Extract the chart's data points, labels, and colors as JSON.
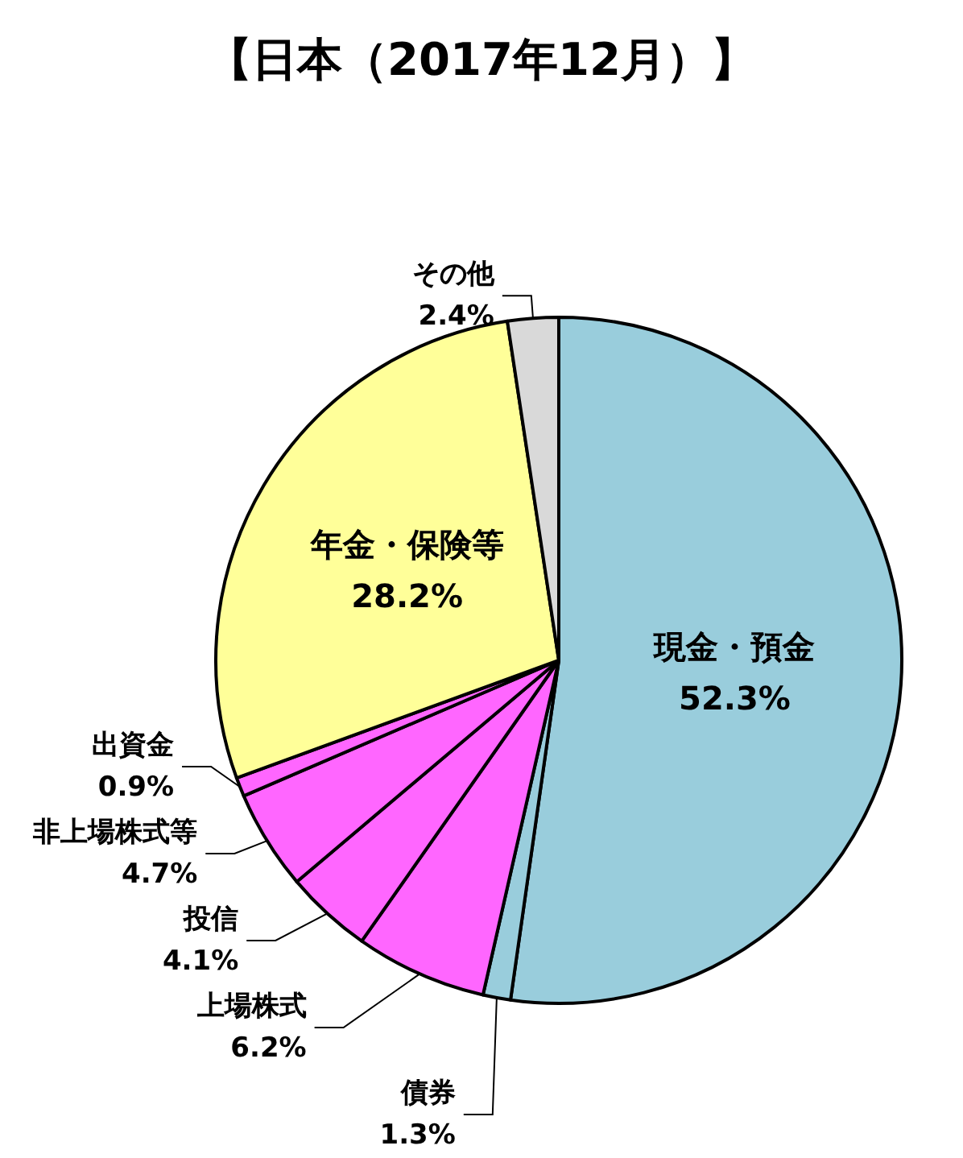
{
  "chart_data": {
    "type": "pie",
    "title": "【日本（2017年12月）】",
    "categories": [
      "現金・預金",
      "債券",
      "上場株式",
      "投信",
      "非上場株式等",
      "出資金",
      "年金・保険等",
      "その他"
    ],
    "values": [
      52.3,
      1.3,
      6.2,
      4.1,
      4.7,
      0.9,
      28.2,
      2.4
    ],
    "colors": [
      "#99cddc",
      "#99cddc",
      "#ff66ff",
      "#ff66ff",
      "#ff66ff",
      "#ff66ff",
      "#ffff99",
      "#d9d9d9"
    ],
    "value_labels": [
      "52.3%",
      "1.3%",
      "6.2%",
      "4.1%",
      "4.7%",
      "0.9%",
      "28.2%",
      "2.4%"
    ],
    "legend": false
  }
}
